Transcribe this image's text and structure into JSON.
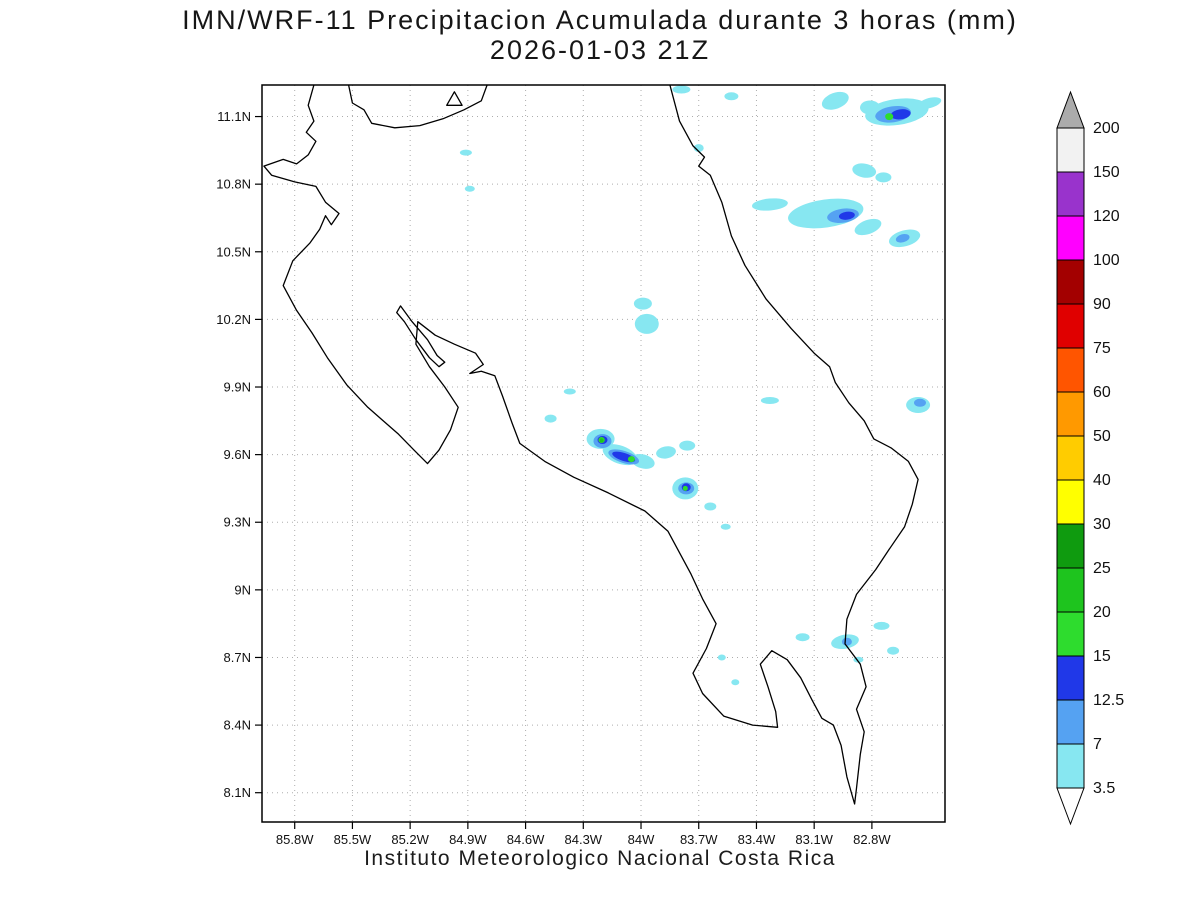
{
  "title": "IMN/WRF-11 Precipitacion Acumulada durante 3 horas (mm)",
  "subtitle": "2026-01-03 21Z",
  "footer": "Instituto Meteorologico Nacional Costa Rica",
  "chart_data": {
    "type": "map-contour",
    "variable": "3-hour accumulated precipitation",
    "units": "mm",
    "model": "IMN/WRF-11",
    "valid_time": "2026-01-03 21Z",
    "region": "Costa Rica",
    "grid": "dotted",
    "lon_axis": {
      "tick_labels": [
        "85.8W",
        "85.5W",
        "85.2W",
        "84.9W",
        "84.6W",
        "84.3W",
        "84W",
        "83.7W",
        "83.4W",
        "83.1W",
        "82.8W"
      ],
      "tick_values": [
        85.8,
        85.5,
        85.2,
        84.9,
        84.6,
        84.3,
        84.0,
        83.7,
        83.4,
        83.1,
        82.8
      ],
      "range_west_to_east": [
        85.97,
        82.42
      ]
    },
    "lat_axis": {
      "tick_labels": [
        "11.1N",
        "10.8N",
        "10.5N",
        "10.2N",
        "9.9N",
        "9.6N",
        "9.3N",
        "9N",
        "8.7N",
        "8.4N",
        "8.1N"
      ],
      "tick_values": [
        11.1,
        10.8,
        10.5,
        10.2,
        9.9,
        9.6,
        9.3,
        9.0,
        8.7,
        8.4,
        8.1
      ],
      "range_bottom_to_top": [
        7.97,
        11.24
      ]
    },
    "colorbar": {
      "levels": [
        3.5,
        7,
        12.5,
        15,
        20,
        25,
        30,
        40,
        50,
        60,
        75,
        90,
        100,
        120,
        150,
        200
      ],
      "interval_colors": [
        "#87E7F1",
        "#55A2F2",
        "#2038E8",
        "#2EDC2E",
        "#1EC41E",
        "#0F9B0F",
        "#FFFF00",
        "#FFCC00",
        "#FF9900",
        "#FF5500",
        "#E00000",
        "#A30000",
        "#FF00FF",
        "#9933CC",
        "#F2F2F2"
      ],
      "under_color": "#FFFFFF",
      "over_color": "#ABABAB"
    },
    "precip_cells_columns": [
      "lon_w",
      "lat_n",
      "rx_px",
      "ry_px",
      "rotation_deg",
      "level_mm"
    ],
    "precip_cells": [
      [
        82.99,
        11.17,
        14,
        8,
        -20,
        3.5
      ],
      [
        82.81,
        11.14,
        10,
        7,
        0,
        3.5
      ],
      [
        82.67,
        11.12,
        32,
        13,
        -8,
        3.5
      ],
      [
        82.5,
        11.16,
        12,
        5,
        -15,
        3.5
      ],
      [
        82.69,
        11.11,
        18,
        8,
        -8,
        7
      ],
      [
        82.65,
        11.11,
        10,
        5,
        -8,
        12.5
      ],
      [
        82.71,
        11.1,
        4,
        3.5,
        0,
        15
      ],
      [
        83.79,
        11.22,
        9,
        4,
        0,
        3.5
      ],
      [
        83.53,
        11.19,
        7,
        4,
        0,
        3.5
      ],
      [
        83.7,
        10.96,
        5,
        4,
        0,
        3.5
      ],
      [
        84.91,
        10.94,
        6,
        3,
        0,
        3.5
      ],
      [
        84.89,
        10.78,
        5,
        3,
        0,
        3.5
      ],
      [
        82.84,
        10.86,
        12,
        7,
        10,
        3.5
      ],
      [
        82.74,
        10.83,
        8,
        5,
        0,
        3.5
      ],
      [
        83.33,
        10.71,
        18,
        6,
        -5,
        3.5
      ],
      [
        83.04,
        10.67,
        38,
        14,
        -8,
        3.5
      ],
      [
        82.82,
        10.61,
        14,
        7,
        -20,
        3.5
      ],
      [
        82.95,
        10.66,
        16,
        7,
        -8,
        7
      ],
      [
        82.93,
        10.66,
        8,
        4,
        -8,
        12.5
      ],
      [
        82.63,
        10.56,
        16,
        8,
        -15,
        3.5
      ],
      [
        82.64,
        10.56,
        7,
        4,
        -15,
        7
      ],
      [
        83.99,
        10.27,
        9,
        6,
        0,
        3.5
      ],
      [
        83.97,
        10.18,
        12,
        10,
        0,
        3.5
      ],
      [
        84.37,
        9.88,
        6,
        3,
        0,
        3.5
      ],
      [
        84.47,
        9.76,
        6,
        4,
        0,
        3.5
      ],
      [
        84.21,
        9.67,
        14,
        10,
        0,
        3.5
      ],
      [
        84.11,
        9.6,
        18,
        9,
        20,
        3.5
      ],
      [
        83.99,
        9.57,
        12,
        7,
        15,
        3.5
      ],
      [
        84.2,
        9.66,
        9,
        7,
        0,
        7
      ],
      [
        84.2,
        9.665,
        5,
        4,
        0,
        12.5
      ],
      [
        84.205,
        9.665,
        3.2,
        3,
        0,
        15
      ],
      [
        84.205,
        9.663,
        2,
        2,
        0,
        20
      ],
      [
        84.09,
        9.59,
        16,
        6,
        18,
        7
      ],
      [
        84.09,
        9.59,
        12,
        4,
        18,
        12.5
      ],
      [
        84.05,
        9.58,
        3.5,
        3,
        0,
        15
      ],
      [
        83.87,
        9.61,
        10,
        6,
        -10,
        3.5
      ],
      [
        83.76,
        9.64,
        8,
        5,
        0,
        3.5
      ],
      [
        83.77,
        9.45,
        13,
        11,
        0,
        3.5
      ],
      [
        83.765,
        9.45,
        8,
        6,
        0,
        7
      ],
      [
        83.765,
        9.455,
        4.5,
        4,
        0,
        12.5
      ],
      [
        83.77,
        9.45,
        2.5,
        2.5,
        0,
        15
      ],
      [
        83.64,
        9.37,
        6,
        4,
        0,
        3.5
      ],
      [
        83.56,
        9.28,
        5,
        3,
        0,
        3.5
      ],
      [
        83.33,
        9.84,
        9,
        3.5,
        0,
        3.5
      ],
      [
        82.56,
        9.82,
        12,
        8,
        0,
        3.5
      ],
      [
        82.55,
        9.83,
        6,
        4,
        0,
        7
      ],
      [
        83.16,
        8.79,
        7,
        4,
        0,
        3.5
      ],
      [
        82.94,
        8.77,
        14,
        7,
        -10,
        3.5
      ],
      [
        82.93,
        8.77,
        5,
        4,
        0,
        7
      ],
      [
        82.75,
        8.84,
        8,
        4,
        0,
        3.5
      ],
      [
        82.69,
        8.73,
        6,
        4,
        0,
        3.5
      ],
      [
        82.87,
        8.69,
        5,
        3,
        0,
        3.5
      ],
      [
        83.51,
        8.59,
        4,
        3,
        0,
        3.5
      ],
      [
        83.58,
        8.7,
        4,
        3,
        0,
        3.5
      ]
    ],
    "coastline_segments": [
      {
        "name": "mainland-and-borders",
        "closed": false,
        "points": [
          [
            83.85,
            11.24
          ],
          [
            83.8,
            11.08
          ],
          [
            83.73,
            10.97
          ],
          [
            83.67,
            10.92
          ],
          [
            83.7,
            10.88
          ],
          [
            83.64,
            10.84
          ],
          [
            83.58,
            10.72
          ],
          [
            83.53,
            10.57
          ],
          [
            83.46,
            10.44
          ],
          [
            83.35,
            10.29
          ],
          [
            83.22,
            10.16
          ],
          [
            83.1,
            10.05
          ],
          [
            83.02,
            9.99
          ],
          [
            82.99,
            9.92
          ],
          [
            82.92,
            9.83
          ],
          [
            82.84,
            9.75
          ],
          [
            82.79,
            9.67
          ],
          [
            82.7,
            9.63
          ],
          [
            82.61,
            9.57
          ],
          [
            82.56,
            9.49
          ],
          [
            82.59,
            9.38
          ],
          [
            82.63,
            9.28
          ],
          [
            82.71,
            9.18
          ],
          [
            82.78,
            9.09
          ],
          [
            82.88,
            8.98
          ],
          [
            82.93,
            8.87
          ],
          [
            82.94,
            8.76
          ],
          [
            82.86,
            8.67
          ],
          [
            82.83,
            8.57
          ],
          [
            82.88,
            8.47
          ],
          [
            82.84,
            8.37
          ],
          [
            82.86,
            8.27
          ],
          [
            82.88,
            8.12
          ],
          [
            82.89,
            8.05
          ],
          [
            82.93,
            8.17
          ],
          [
            82.96,
            8.31
          ],
          [
            83.0,
            8.4
          ],
          [
            83.06,
            8.43
          ],
          [
            83.11,
            8.51
          ],
          [
            83.17,
            8.61
          ],
          [
            83.24,
            8.69
          ],
          [
            83.32,
            8.73
          ],
          [
            83.38,
            8.67
          ],
          [
            83.34,
            8.57
          ],
          [
            83.3,
            8.46
          ],
          [
            83.29,
            8.39
          ],
          [
            83.42,
            8.4
          ],
          [
            83.57,
            8.44
          ],
          [
            83.68,
            8.54
          ],
          [
            83.73,
            8.63
          ],
          [
            83.66,
            8.74
          ],
          [
            83.61,
            8.85
          ],
          [
            83.68,
            8.96
          ],
          [
            83.74,
            9.07
          ],
          [
            83.86,
            9.26
          ],
          [
            83.98,
            9.35
          ],
          [
            84.17,
            9.43
          ],
          [
            84.35,
            9.5
          ],
          [
            84.5,
            9.57
          ],
          [
            84.63,
            9.65
          ],
          [
            84.67,
            9.74
          ],
          [
            84.72,
            9.86
          ],
          [
            84.76,
            9.95
          ],
          [
            84.83,
            9.97
          ],
          [
            84.89,
            9.96
          ],
          [
            84.82,
            10.0
          ],
          [
            84.86,
            10.05
          ],
          [
            84.97,
            10.09
          ],
          [
            85.07,
            10.13
          ],
          [
            85.16,
            10.19
          ],
          [
            85.17,
            10.09
          ],
          [
            85.1,
            9.99
          ],
          [
            85.02,
            9.9
          ],
          [
            84.95,
            9.81
          ],
          [
            84.99,
            9.71
          ],
          [
            85.05,
            9.62
          ],
          [
            85.11,
            9.56
          ],
          [
            85.18,
            9.62
          ],
          [
            85.26,
            9.69
          ],
          [
            85.42,
            9.81
          ],
          [
            85.53,
            9.91
          ],
          [
            85.63,
            10.03
          ],
          [
            85.71,
            10.14
          ],
          [
            85.79,
            10.24
          ],
          [
            85.86,
            10.35
          ],
          [
            85.81,
            10.46
          ],
          [
            85.72,
            10.54
          ],
          [
            85.67,
            10.6
          ],
          [
            85.64,
            10.66
          ],
          [
            85.61,
            10.62
          ],
          [
            85.57,
            10.67
          ],
          [
            85.64,
            10.72
          ],
          [
            85.69,
            10.79
          ],
          [
            85.8,
            10.81
          ],
          [
            85.92,
            10.84
          ],
          [
            85.96,
            10.88
          ],
          [
            85.86,
            10.91
          ],
          [
            85.79,
            10.89
          ],
          [
            85.73,
            10.93
          ],
          [
            85.69,
            10.99
          ],
          [
            85.74,
            11.03
          ],
          [
            85.7,
            11.08
          ],
          [
            85.73,
            11.15
          ],
          [
            85.7,
            11.24
          ]
        ]
      },
      {
        "name": "lake-nicaragua-shore",
        "closed": false,
        "points": [
          [
            85.52,
            11.24
          ],
          [
            85.5,
            11.16
          ],
          [
            85.44,
            11.13
          ],
          [
            85.4,
            11.07
          ],
          [
            85.28,
            11.05
          ],
          [
            85.15,
            11.06
          ],
          [
            85.03,
            11.09
          ],
          [
            84.92,
            11.13
          ],
          [
            84.83,
            11.17
          ],
          [
            84.8,
            11.24
          ]
        ]
      },
      {
        "name": "lake-island",
        "closed": true,
        "points": [
          [
            84.97,
            11.21
          ],
          [
            84.93,
            11.15
          ],
          [
            85.01,
            11.15
          ]
        ]
      },
      {
        "name": "nicoya-gulf-estuary",
        "closed": true,
        "points": [
          [
            85.25,
            10.26
          ],
          [
            85.19,
            10.19
          ],
          [
            85.11,
            10.11
          ],
          [
            85.06,
            10.04
          ],
          [
            85.02,
            10.01
          ],
          [
            85.05,
            9.99
          ],
          [
            85.1,
            10.03
          ],
          [
            85.17,
            10.11
          ],
          [
            85.23,
            10.19
          ],
          [
            85.27,
            10.23
          ]
        ]
      }
    ]
  }
}
